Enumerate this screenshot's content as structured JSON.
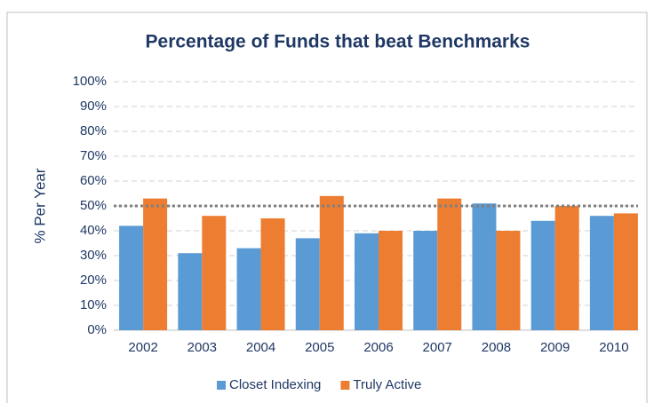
{
  "chart_data": {
    "type": "bar",
    "title": "Percentage of Funds that beat Benchmarks",
    "y_label": "% Per Year",
    "categories": [
      "2002",
      "2003",
      "2004",
      "2005",
      "2006",
      "2007",
      "2008",
      "2009",
      "2010"
    ],
    "series": [
      {
        "name": "Closet Indexing",
        "color": "#5b9bd5",
        "values": [
          42,
          31,
          33,
          37,
          39,
          40,
          51,
          44,
          46
        ]
      },
      {
        "name": "Truly Active",
        "color": "#ed7d31",
        "values": [
          53,
          46,
          45,
          54,
          40,
          53,
          40,
          50,
          47
        ]
      }
    ],
    "ylim": [
      0,
      100
    ],
    "yticks": [
      {
        "value": 0,
        "label": "0%"
      },
      {
        "value": 10,
        "label": "10%"
      },
      {
        "value": 20,
        "label": "20%"
      },
      {
        "value": 30,
        "label": "30%"
      },
      {
        "value": 40,
        "label": "40%"
      },
      {
        "value": 50,
        "label": "50%"
      },
      {
        "value": 60,
        "label": "60%"
      },
      {
        "value": 70,
        "label": "70%"
      },
      {
        "value": 80,
        "label": "80%"
      },
      {
        "value": 90,
        "label": "90%"
      },
      {
        "value": 100,
        "label": "100%"
      }
    ],
    "reference_line": 50,
    "grid": true,
    "legend": "bottom"
  }
}
